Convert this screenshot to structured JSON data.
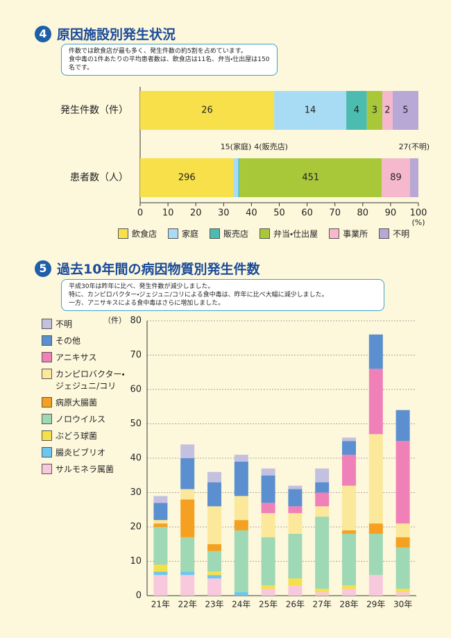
{
  "sections": [
    {
      "number": "4",
      "title": "原因施設別発生状況",
      "note": [
        "件数では飲食店が最も多く、発生件数の約5割を占めています。",
        "食中毒の1件あたりの平均患者数は、飲食店は11名、弁当・仕出屋は150名です。"
      ]
    },
    {
      "number": "5",
      "title": "過去10年間の病因物質別発生件数",
      "note": [
        "平成30年は昨年に比べ、発生件数が減少しました。",
        "特に、カンピロバクター・ジェジュニ/コリによる食中毒は、昨年に比べ大幅に減少しました。",
        "一方、アニサキスによる食中毒はさらに増加しました。"
      ]
    }
  ],
  "chart_data": [
    {
      "type": "bar",
      "orientation": "horizontal",
      "stacked": "percent",
      "categories": [
        "発生件数（件）",
        "患者数（人）"
      ],
      "series": [
        {
          "name": "飲食店",
          "color": "#f7e04a",
          "values": [
            26,
            296
          ],
          "value_labels": [
            "26",
            "296"
          ]
        },
        {
          "name": "家庭",
          "color": "#a8dcf4",
          "values": [
            14,
            15
          ],
          "value_labels": [
            "14",
            "15(家庭)"
          ]
        },
        {
          "name": "販売店",
          "color": "#4dbcb0",
          "values": [
            4,
            4
          ],
          "value_labels": [
            "4",
            "4(販売店)"
          ]
        },
        {
          "name": "弁当・仕出屋",
          "color": "#a8c83a",
          "values": [
            3,
            451
          ],
          "value_labels": [
            "3",
            "451"
          ]
        },
        {
          "name": "事業所",
          "color": "#f5b8cc",
          "values": [
            2,
            89
          ],
          "value_labels": [
            "2",
            "89"
          ]
        },
        {
          "name": "不明",
          "color": "#b8a8d6",
          "values": [
            5,
            27
          ],
          "value_labels": [
            "5",
            "27(不明)"
          ]
        }
      ],
      "xlim": [
        0,
        100
      ],
      "xticks": [
        0,
        10,
        20,
        30,
        40,
        50,
        60,
        70,
        80,
        90,
        100
      ],
      "xlabel": "(%)",
      "legend": "bottom"
    },
    {
      "type": "bar",
      "orientation": "vertical",
      "stacked": "count",
      "categories": [
        "21年",
        "22年",
        "23年",
        "24年",
        "25年",
        "26年",
        "27年",
        "28年",
        "29年",
        "30年"
      ],
      "series": [
        {
          "name": "サルモネラ属菌",
          "color": "#f8c8dc",
          "values": [
            6,
            6,
            5,
            0,
            2,
            3,
            1,
            2,
            6,
            1
          ]
        },
        {
          "name": "腸炎ビブリオ",
          "color": "#6ec6ee",
          "values": [
            1,
            1,
            1,
            1,
            0,
            0,
            0,
            0,
            0,
            0
          ]
        },
        {
          "name": "ぶどう球菌",
          "color": "#f6e04a",
          "values": [
            2,
            0,
            1,
            0,
            1,
            2,
            1,
            1,
            0,
            1
          ]
        },
        {
          "name": "ノロウイルス",
          "color": "#9fd8b4",
          "values": [
            11,
            10,
            6,
            18,
            14,
            13,
            21,
            15,
            12,
            12
          ]
        },
        {
          "name": "病原大腸菌",
          "color": "#f5a020",
          "values": [
            1,
            11,
            2,
            3,
            0,
            0,
            0,
            1,
            3,
            3
          ]
        },
        {
          "name": "カンピロバクター・ジェジュニ/コリ",
          "color": "#fbe89a",
          "values": [
            1,
            3,
            11,
            7,
            7,
            6,
            3,
            13,
            26,
            4
          ]
        },
        {
          "name": "アニキサス",
          "color": "#f080b8",
          "values": [
            0,
            0,
            0,
            0,
            3,
            2,
            4,
            9,
            19,
            24
          ]
        },
        {
          "name": "その他",
          "color": "#5b8fd0",
          "values": [
            5,
            9,
            7,
            10,
            8,
            5,
            3,
            4,
            10,
            9
          ]
        },
        {
          "name": "不明",
          "color": "#c4c0e0",
          "values": [
            2,
            4,
            3,
            2,
            2,
            1,
            4,
            1,
            0,
            0
          ]
        }
      ],
      "ylim": [
        0,
        80
      ],
      "yticks": [
        0,
        10,
        20,
        30,
        40,
        50,
        60,
        70,
        80
      ],
      "ylabel": "（件）",
      "grid": true,
      "legend": "left"
    }
  ]
}
